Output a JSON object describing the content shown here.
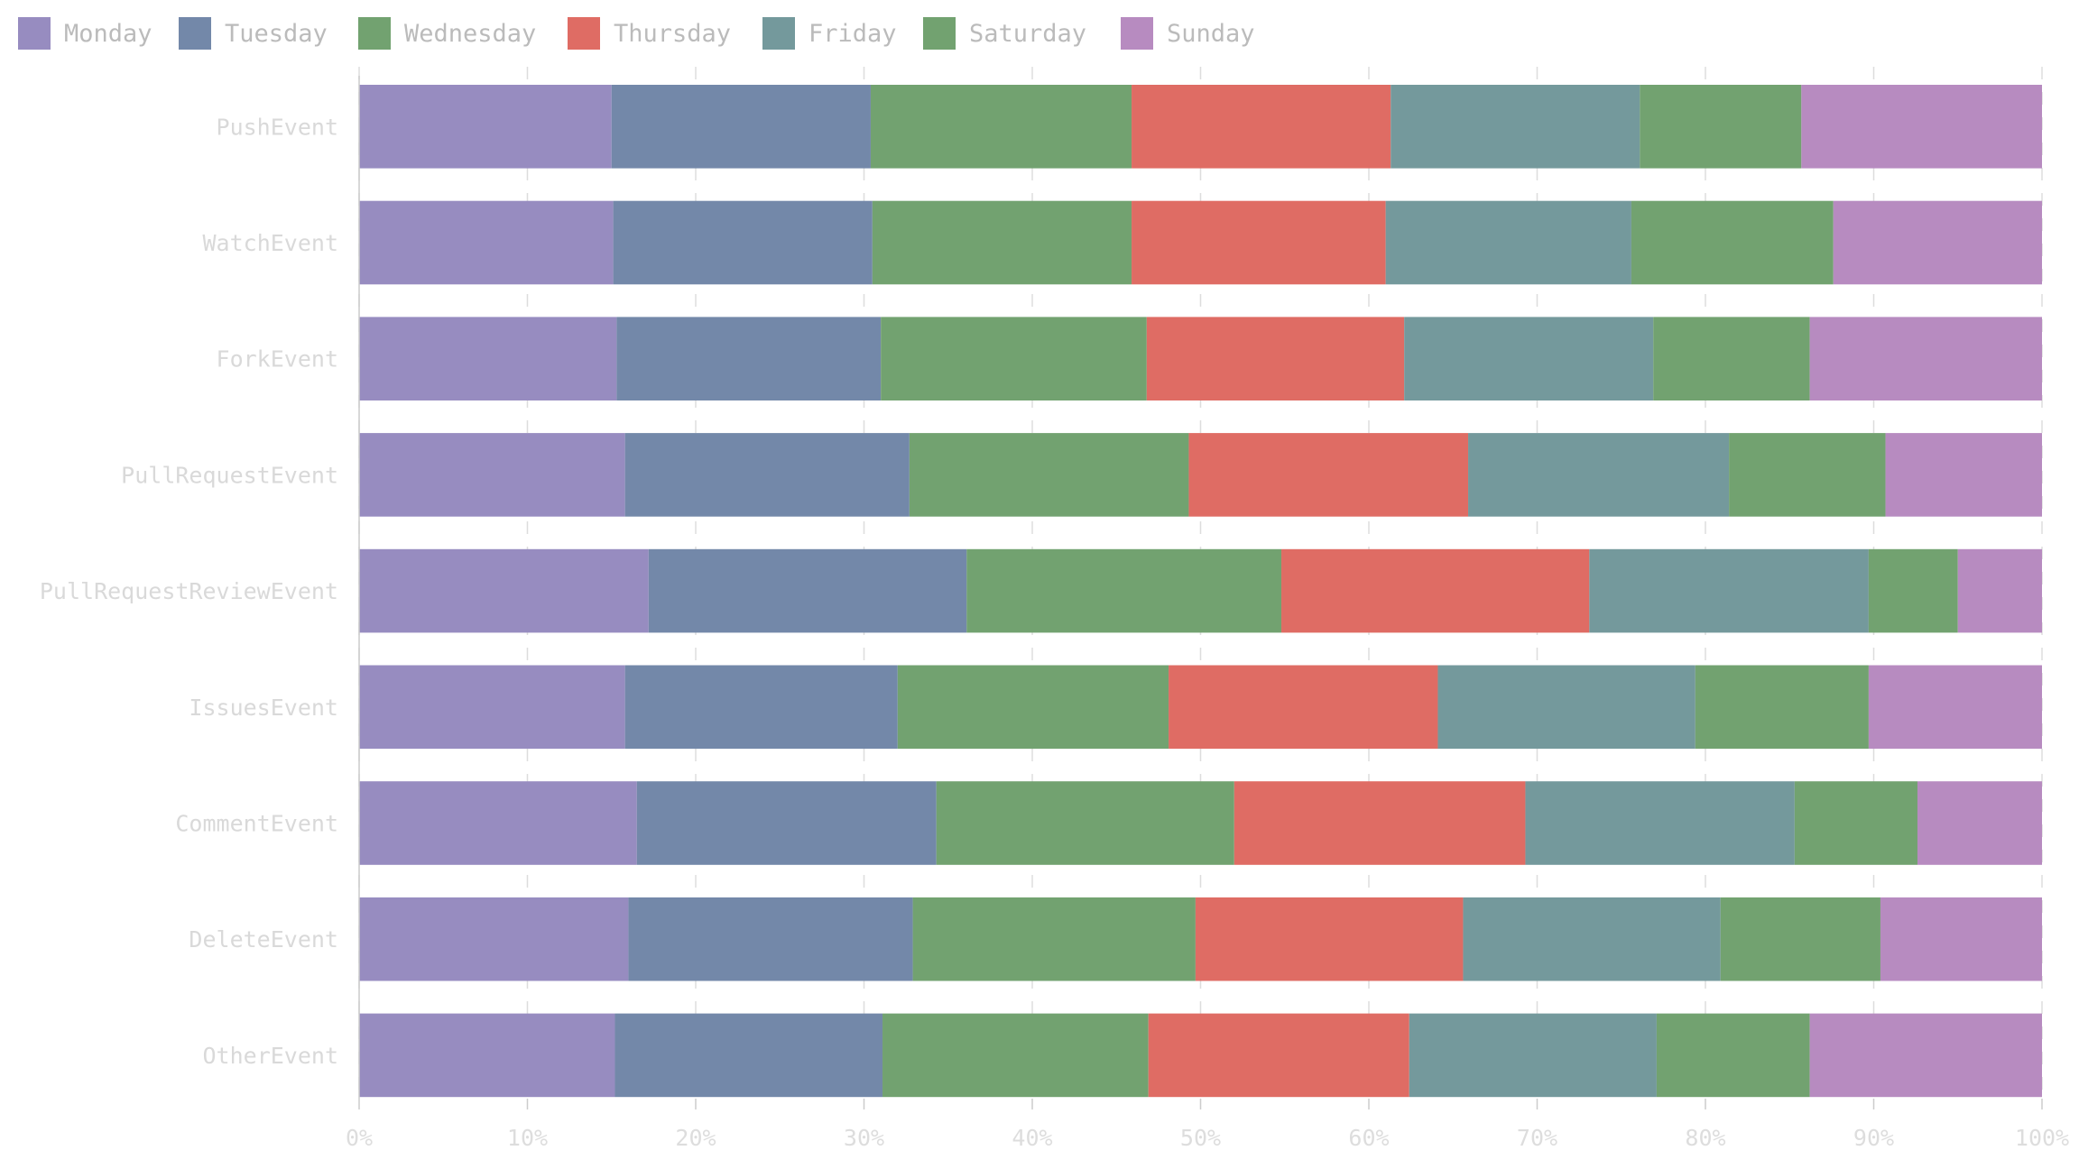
{
  "chart_data": {
    "type": "bar",
    "orientation": "horizontal",
    "stacked": "percent",
    "categories": [
      "PushEvent",
      "WatchEvent",
      "ForkEvent",
      "PullRequestEvent",
      "PullRequestReviewEvent",
      "IssuesEvent",
      "CommentEvent",
      "DeleteEvent",
      "OtherEvent"
    ],
    "series": [
      {
        "name": "Monday",
        "color": "#978cc0",
        "values": [
          15.0,
          15.1,
          15.3,
          15.8,
          17.2,
          15.8,
          16.5,
          16.0,
          15.2
        ]
      },
      {
        "name": "Tuesday",
        "color": "#7388a9",
        "values": [
          15.4,
          15.4,
          15.7,
          16.9,
          18.9,
          16.2,
          17.8,
          16.9,
          15.9
        ]
      },
      {
        "name": "Wednesday",
        "color": "#72a270",
        "values": [
          15.5,
          15.4,
          15.8,
          16.6,
          18.7,
          16.1,
          17.7,
          16.8,
          15.8
        ]
      },
      {
        "name": "Thursday",
        "color": "#df6c64",
        "values": [
          15.4,
          15.1,
          15.3,
          16.6,
          18.3,
          16.0,
          17.3,
          15.9,
          15.5
        ]
      },
      {
        "name": "Friday",
        "color": "#74999c",
        "values": [
          14.8,
          14.6,
          14.8,
          15.5,
          16.6,
          15.3,
          16.0,
          15.3,
          14.7
        ]
      },
      {
        "name": "Saturday",
        "color": "#72a270",
        "values": [
          9.6,
          12.0,
          9.3,
          9.3,
          5.3,
          10.3,
          7.3,
          9.5,
          9.1
        ]
      },
      {
        "name": "Sunday",
        "color": "#b78bc0",
        "values": [
          14.3,
          12.4,
          13.8,
          9.3,
          5.0,
          10.3,
          7.4,
          9.6,
          13.8
        ]
      }
    ],
    "xlim": [
      0,
      100
    ],
    "xticks": [
      "0%",
      "10%",
      "20%",
      "30%",
      "40%",
      "50%",
      "60%",
      "70%",
      "80%",
      "90%",
      "100%"
    ],
    "grid": "vertical dashed",
    "legend": "top-left"
  }
}
